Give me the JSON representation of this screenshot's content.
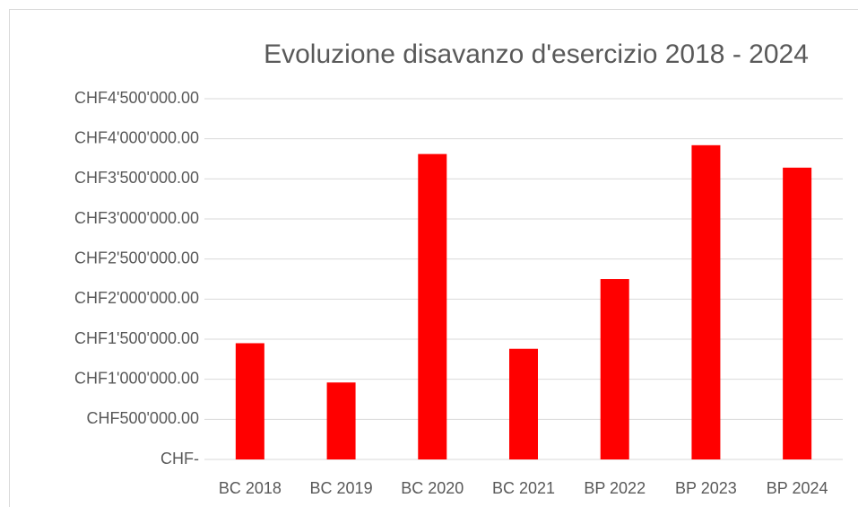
{
  "chart_data": {
    "type": "bar",
    "title": "Evoluzione disavanzo d'esercizio 2018 - 2024",
    "categories": [
      "BC 2018",
      "BC 2019",
      "BC 2020",
      "BC 2021",
      "BP 2022",
      "BP 2023",
      "BP 2024"
    ],
    "values": [
      1450000,
      960000,
      3810000,
      1380000,
      2250000,
      3920000,
      3640000
    ],
    "color": "#ff0000",
    "ylim": [
      0,
      4500000
    ],
    "yticks": [
      {
        "value": 0,
        "label": "CHF-"
      },
      {
        "value": 500000,
        "label": "CHF500'000.00"
      },
      {
        "value": 1000000,
        "label": "CHF1'000'000.00"
      },
      {
        "value": 1500000,
        "label": "CHF1'500'000.00"
      },
      {
        "value": 2000000,
        "label": "CHF2'000'000.00"
      },
      {
        "value": 2500000,
        "label": "CHF2'500'000.00"
      },
      {
        "value": 3000000,
        "label": "CHF3'000'000.00"
      },
      {
        "value": 3500000,
        "label": "CHF3'500'000.00"
      },
      {
        "value": 4000000,
        "label": "CHF4'000'000.00"
      },
      {
        "value": 4500000,
        "label": "CHF4'500'000.00"
      }
    ],
    "grid": true
  }
}
